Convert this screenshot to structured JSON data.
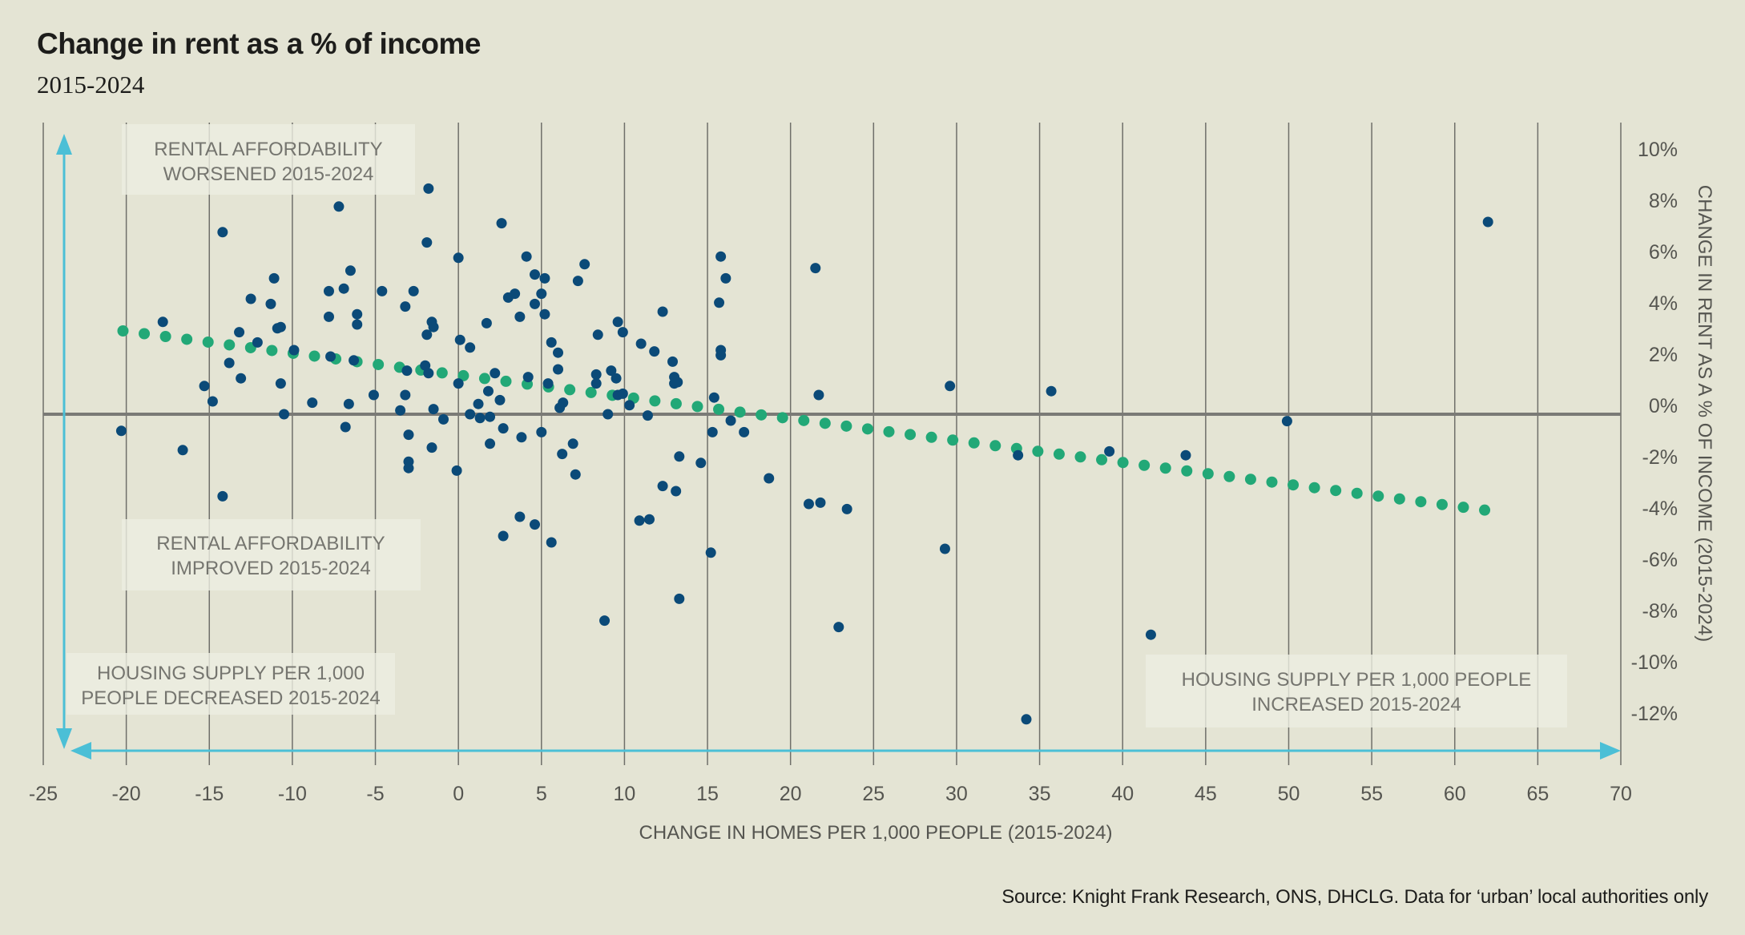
{
  "header": {
    "title": "Change in rent as a % of income",
    "subtitle": "2015-2024"
  },
  "footer": {
    "source": "Source: Knight Frank Research, ONS, DHCLG. Data for ‘urban’ local authorities only"
  },
  "colors": {
    "background": "#e4e4d4",
    "points": "#0b4a78",
    "trend": "#22a877",
    "arrows": "#4bbfd6",
    "gridlines": "#6f6f6a",
    "zero_line": "#7a7a76",
    "annotation_box": "#ecede1"
  },
  "annotations": [
    {
      "id": "worsened",
      "lines": [
        "RENTAL AFFORDABILITY",
        "WORSENED 2015-2024"
      ]
    },
    {
      "id": "improved",
      "lines": [
        "RENTAL AFFORDABILITY",
        "IMPROVED 2015-2024"
      ]
    },
    {
      "id": "supply-decreased",
      "lines": [
        "HOUSING SUPPLY PER 1,000",
        "PEOPLE DECREASED 2015-2024"
      ]
    },
    {
      "id": "supply-increased",
      "lines": [
        "HOUSING SUPPLY PER 1,000 PEOPLE",
        "INCREASED 2015-2024"
      ]
    }
  ],
  "chart_data": {
    "type": "scatter",
    "title": "Change in rent as a % of income",
    "subtitle": "2015-2024",
    "xlabel": "CHANGE IN HOMES PER 1,000 PEOPLE (2015-2024)",
    "ylabel": "CHANGE IN RENT AS A % OF INCOME (2015-2024)",
    "xlim": [
      -25,
      70
    ],
    "ylim": [
      -12,
      10
    ],
    "x_ticks": [
      -25,
      -20,
      -15,
      -10,
      -5,
      0,
      5,
      10,
      15,
      20,
      25,
      30,
      35,
      40,
      45,
      50,
      55,
      60,
      65,
      70
    ],
    "x_tick_labels": [
      "-25",
      "-20",
      "-15",
      "-10",
      "-5",
      "0",
      "5",
      "10",
      "15",
      "20",
      "25",
      "30",
      "35",
      "40",
      "45",
      "50",
      "55",
      "60",
      "65",
      "70"
    ],
    "y_ticks": [
      10,
      8,
      6,
      4,
      2,
      0,
      -2,
      -4,
      -6,
      -8,
      -10,
      -12
    ],
    "y_tick_labels": [
      "10%",
      "8%",
      "6%",
      "4%",
      "2%",
      "0%",
      "-2%",
      "-4%",
      "-6%",
      "-8%",
      "-10%",
      "-12%"
    ],
    "y_axis_side": "right",
    "grid": "vertical",
    "series": [
      {
        "name": "Urban local authorities",
        "kind": "scatter",
        "points": [
          [
            -1.8,
            8.8
          ],
          [
            -7.2,
            8.1
          ],
          [
            -14.2,
            7.1
          ],
          [
            -1.9,
            6.7
          ],
          [
            0.0,
            6.1
          ],
          [
            -11.1,
            5.3
          ],
          [
            -6.5,
            5.6
          ],
          [
            -12.5,
            4.5
          ],
          [
            -11.3,
            4.3
          ],
          [
            -7.8,
            4.8
          ],
          [
            -6.9,
            4.9
          ],
          [
            -4.6,
            4.8
          ],
          [
            -2.7,
            4.8
          ],
          [
            -3.2,
            4.2
          ],
          [
            -17.8,
            3.6
          ],
          [
            -7.8,
            3.8
          ],
          [
            -6.1,
            3.9
          ],
          [
            -6.1,
            3.5
          ],
          [
            -10.7,
            3.4
          ],
          [
            -10.9,
            3.35
          ],
          [
            -1.6,
            3.6
          ],
          [
            -1.5,
            3.4
          ],
          [
            -13.2,
            3.2
          ],
          [
            -1.9,
            3.1
          ],
          [
            0.1,
            2.9
          ],
          [
            0.7,
            2.6
          ],
          [
            -12.1,
            2.8
          ],
          [
            -9.9,
            2.5
          ],
          [
            -7.7,
            2.25
          ],
          [
            -6.3,
            2.1
          ],
          [
            -2.0,
            1.9
          ],
          [
            -3.1,
            1.7
          ],
          [
            -1.8,
            1.6
          ],
          [
            0.0,
            1.2
          ],
          [
            -13.8,
            2.0
          ],
          [
            -13.1,
            1.4
          ],
          [
            -10.7,
            1.2
          ],
          [
            -15.3,
            1.1
          ],
          [
            -14.8,
            0.5
          ],
          [
            -8.8,
            0.45
          ],
          [
            -6.6,
            0.4
          ],
          [
            -5.1,
            0.75
          ],
          [
            -3.2,
            0.75
          ],
          [
            -3.5,
            0.15
          ],
          [
            -1.5,
            0.2
          ],
          [
            1.2,
            0.4
          ],
          [
            -10.5,
            0.0
          ],
          [
            0.7,
            0.0
          ],
          [
            1.3,
            -0.15
          ],
          [
            -0.9,
            -0.2
          ],
          [
            -20.3,
            -0.65
          ],
          [
            -6.8,
            -0.5
          ],
          [
            -16.6,
            -1.4
          ],
          [
            -3.0,
            -0.8
          ],
          [
            -1.6,
            -1.3
          ],
          [
            -3.0,
            -1.85
          ],
          [
            -3.0,
            -2.1
          ],
          [
            -0.1,
            -2.2
          ],
          [
            -14.2,
            -3.2
          ],
          [
            2.6,
            7.45
          ],
          [
            4.1,
            6.15
          ],
          [
            7.6,
            5.85
          ],
          [
            4.6,
            5.45
          ],
          [
            5.2,
            5.3
          ],
          [
            7.2,
            5.2
          ],
          [
            15.8,
            6.15
          ],
          [
            16.1,
            5.3
          ],
          [
            21.5,
            5.7
          ],
          [
            3.0,
            4.55
          ],
          [
            3.4,
            4.7
          ],
          [
            5.0,
            4.7
          ],
          [
            4.6,
            4.3
          ],
          [
            5.2,
            3.9
          ],
          [
            3.7,
            3.8
          ],
          [
            15.7,
            4.35
          ],
          [
            12.3,
            4.0
          ],
          [
            1.7,
            3.55
          ],
          [
            9.6,
            3.6
          ],
          [
            9.9,
            3.2
          ],
          [
            8.4,
            3.1
          ],
          [
            5.6,
            2.8
          ],
          [
            6.0,
            2.4
          ],
          [
            11.0,
            2.75
          ],
          [
            11.8,
            2.45
          ],
          [
            12.9,
            2.05
          ],
          [
            15.8,
            2.5
          ],
          [
            15.8,
            2.3
          ],
          [
            6.0,
            1.75
          ],
          [
            2.2,
            1.6
          ],
          [
            4.2,
            1.45
          ],
          [
            8.3,
            1.55
          ],
          [
            9.2,
            1.7
          ],
          [
            9.5,
            1.4
          ],
          [
            8.3,
            1.2
          ],
          [
            13.0,
            1.45
          ],
          [
            13.0,
            1.2
          ],
          [
            13.2,
            1.25
          ],
          [
            5.4,
            1.2
          ],
          [
            1.8,
            0.9
          ],
          [
            2.5,
            0.55
          ],
          [
            6.3,
            0.45
          ],
          [
            6.1,
            0.25
          ],
          [
            9.6,
            0.75
          ],
          [
            9.9,
            0.8
          ],
          [
            10.3,
            0.35
          ],
          [
            15.4,
            0.65
          ],
          [
            21.7,
            0.75
          ],
          [
            1.9,
            -0.1
          ],
          [
            9.0,
            0.0
          ],
          [
            11.4,
            -0.05
          ],
          [
            16.4,
            -0.25
          ],
          [
            2.7,
            -0.55
          ],
          [
            3.8,
            -0.9
          ],
          [
            5.0,
            -0.7
          ],
          [
            15.3,
            -0.7
          ],
          [
            17.2,
            -0.7
          ],
          [
            1.9,
            -1.15
          ],
          [
            6.9,
            -1.15
          ],
          [
            6.25,
            -1.55
          ],
          [
            7.05,
            -2.35
          ],
          [
            13.3,
            -1.65
          ],
          [
            14.6,
            -1.9
          ],
          [
            18.7,
            -2.5
          ],
          [
            12.3,
            -2.8
          ],
          [
            13.1,
            -3.0
          ],
          [
            21.1,
            -3.5
          ],
          [
            21.8,
            -3.45
          ],
          [
            23.4,
            -3.7
          ],
          [
            3.7,
            -4.0
          ],
          [
            4.6,
            -4.3
          ],
          [
            2.7,
            -4.75
          ],
          [
            5.6,
            -5.0
          ],
          [
            10.9,
            -4.15
          ],
          [
            11.5,
            -4.1
          ],
          [
            15.2,
            -5.4
          ],
          [
            8.8,
            -8.05
          ],
          [
            13.3,
            -7.2
          ],
          [
            22.9,
            -8.3
          ],
          [
            62.0,
            7.5
          ],
          [
            29.6,
            1.1
          ],
          [
            35.7,
            0.9
          ],
          [
            49.9,
            -0.27
          ],
          [
            33.7,
            -1.6
          ],
          [
            39.2,
            -1.45
          ],
          [
            43.8,
            -1.6
          ],
          [
            29.3,
            -5.25
          ],
          [
            41.7,
            -8.6
          ],
          [
            34.2,
            -11.9
          ]
        ]
      },
      {
        "name": "Linear trend",
        "kind": "dotted-trendline",
        "x_start": -20.2,
        "y_start": 3.25,
        "x_end": 61.8,
        "y_end": -3.74,
        "dot_count": 65
      }
    ],
    "quadrant_annotations": [
      "RENTAL AFFORDABILITY WORSENED 2015-2024",
      "RENTAL AFFORDABILITY IMPROVED 2015-2024",
      "HOUSING SUPPLY PER 1,000 PEOPLE DECREASED 2015-2024",
      "HOUSING SUPPLY PER 1,000 PEOPLE INCREASED 2015-2024"
    ]
  }
}
